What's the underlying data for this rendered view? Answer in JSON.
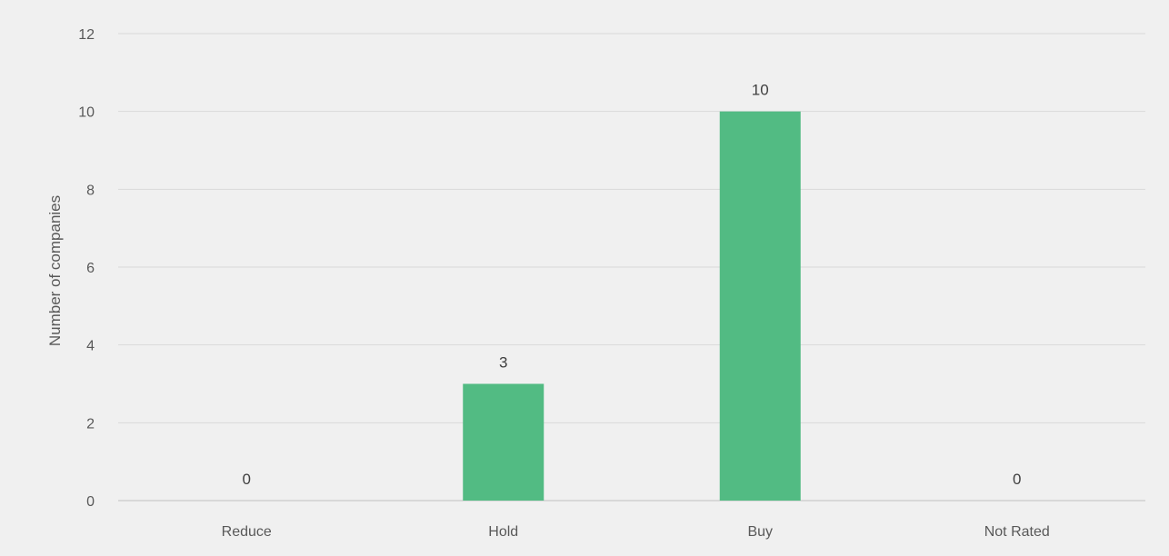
{
  "chart_data": {
    "type": "bar",
    "title": "",
    "xlabel": "",
    "ylabel": "Number of companies",
    "categories": [
      "Reduce",
      "Hold",
      "Buy",
      "Not Rated"
    ],
    "values": [
      0,
      3,
      10,
      0
    ],
    "data_labels": [
      "0",
      "3",
      "10",
      "0"
    ],
    "ylim": [
      0,
      12
    ],
    "y_ticks": [
      0,
      2,
      4,
      6,
      8,
      10,
      12
    ],
    "grid": true,
    "legend": "none",
    "colors": {
      "bar": "#52bb83",
      "grid": "#d9d9d9",
      "axis_text": "#595959",
      "data_label_text": "#404040",
      "background": "#f0f0f0"
    }
  }
}
